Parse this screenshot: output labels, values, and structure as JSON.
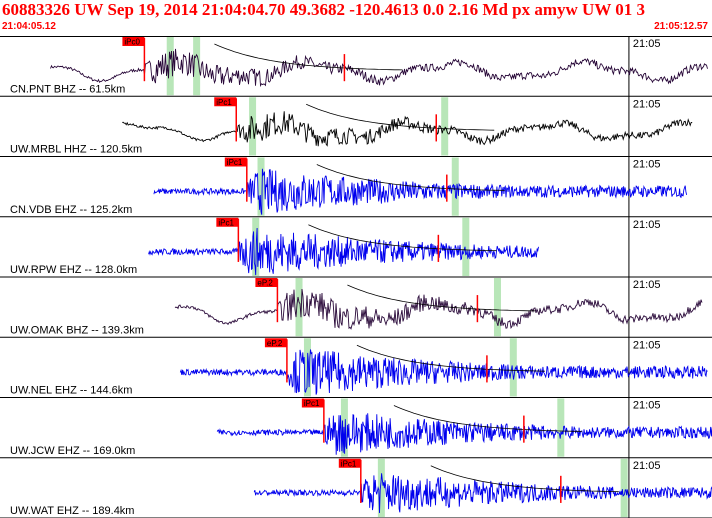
{
  "header": {
    "title": "60883326 UW Sep 19, 2014 21:04:04.70   49.3682 -120.4613  0.0 2.16 Md px amyw UW 01   3",
    "start_time": "21:04:05.12",
    "end_time": "21:05:12.57"
  },
  "colors": {
    "accent_red": "#ff0000",
    "pick_green": "#b8e6b8",
    "trace_blue": "#0000ee",
    "trace_dark": "#1a0a2a"
  },
  "time_axis": {
    "minute_label": "21:05",
    "start_s": 0.42,
    "end_s": 67.87
  },
  "traces": [
    {
      "station": "CN.PNT BHZ -- 61.5km",
      "pick": "iPc0",
      "color": "#2a0a3a",
      "kind": "long",
      "pick_t": "21:04:14.1",
      "greens": [
        {
          "t": "21:04:16.5"
        },
        {
          "t": "21:04:19.0"
        }
      ],
      "signal_start": "21:04:05.2",
      "signal_end": "21:05:07.5",
      "amp": 0.32
    },
    {
      "station": "UW.MRBL HHZ -- 120.5km",
      "pick": "iPc1",
      "color": "#000000",
      "kind": "long",
      "pick_t": "21:04:22.8",
      "greens": [
        {
          "t": "21:04:24.3"
        },
        {
          "t": "21:04:42.5"
        }
      ],
      "signal_start": "21:04:12.0",
      "signal_end": "21:05:06.0",
      "amp": 0.3
    },
    {
      "station": "CN.VDB EHZ -- 125.2km",
      "pick": "iPc1",
      "color": "#0000ee",
      "kind": "short",
      "pick_t": "21:04:23.8",
      "greens": [
        {
          "t": "21:04:25.1"
        },
        {
          "t": "21:04:43.5"
        }
      ],
      "signal_start": "21:04:15.0",
      "signal_end": "21:05:05.5",
      "amp": 0.4
    },
    {
      "station": "UW.RPW EHZ -- 128.0km",
      "pick": "iPc1",
      "color": "#0000ee",
      "kind": "short",
      "pick_t": "21:04:23.0",
      "greens": [
        {
          "t": "21:04:24.6"
        },
        {
          "t": "21:04:44.5"
        }
      ],
      "signal_start": "21:04:14.5",
      "signal_end": "21:04:51.5",
      "amp": 0.42
    },
    {
      "station": "UW.OMAK BHZ -- 139.3km",
      "pick": "eP.2",
      "color": "#2a0a3a",
      "kind": "long",
      "pick_t": "21:04:26.7",
      "greens": [
        {
          "t": "21:04:28.7"
        },
        {
          "t": "21:04:47.5"
        }
      ],
      "signal_start": "21:04:17.0",
      "signal_end": "21:05:07.0",
      "amp": 0.36
    },
    {
      "station": "UW.NEL EHZ -- 144.6km",
      "pick": "eP.2",
      "color": "#0000ee",
      "kind": "short",
      "pick_t": "21:04:27.6",
      "greens": [
        {
          "t": "21:04:29.5"
        },
        {
          "t": "21:04:49.0"
        }
      ],
      "signal_start": "21:04:17.5",
      "signal_end": "21:05:07.5",
      "amp": 0.42
    },
    {
      "station": "UW.JCW EHZ -- 169.0km",
      "pick": "iPc1",
      "color": "#0000ee",
      "kind": "short",
      "pick_t": "21:04:31.1",
      "greens": [
        {
          "t": "21:04:33.0"
        },
        {
          "t": "21:04:53.5"
        }
      ],
      "signal_start": "21:04:21.0",
      "signal_end": "21:05:10.0",
      "amp": 0.38
    },
    {
      "station": "UW.WAT EHZ -- 189.4km",
      "pick": "iPc1",
      "color": "#0000ee",
      "kind": "short",
      "pick_t": "21:04:34.6",
      "greens": [
        {
          "t": "21:04:36.5"
        },
        {
          "t": "21:04:59.5"
        }
      ],
      "signal_start": "21:04:24.5",
      "signal_end": "21:05:12.5",
      "amp": 0.38
    }
  ]
}
